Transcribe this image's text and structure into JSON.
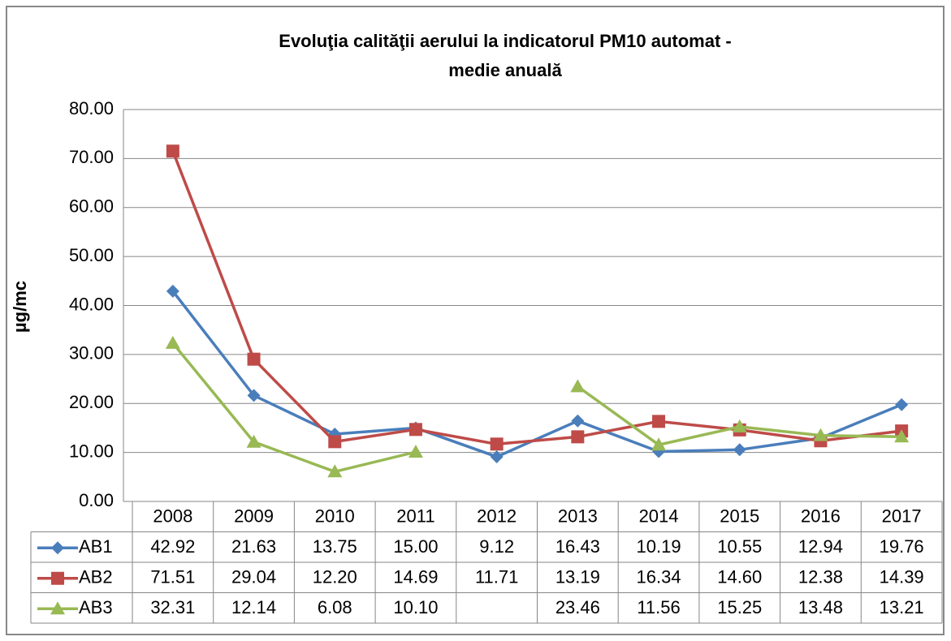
{
  "chart_data": {
    "type": "line",
    "title_lines": [
      "Evoluţia calităţii aerului la indicatorul PM10 automat -",
      "medie anuală"
    ],
    "y_label": "µg/mc",
    "categories": [
      "2008",
      "2009",
      "2010",
      "2011",
      "2012",
      "2013",
      "2014",
      "2015",
      "2016",
      "2017"
    ],
    "series": [
      {
        "name": "AB1",
        "color": "#4a7ebb",
        "marker": "diamond",
        "values": [
          42.92,
          21.63,
          13.75,
          15.0,
          9.12,
          16.43,
          10.19,
          10.55,
          12.94,
          19.76
        ],
        "value_labels": [
          "42.92",
          "21.63",
          "13.75",
          "15.00",
          "9.12",
          "16.43",
          "10.19",
          "10.55",
          "12.94",
          "19.76"
        ]
      },
      {
        "name": "AB2",
        "color": "#be4b48",
        "marker": "square",
        "values": [
          71.51,
          29.04,
          12.2,
          14.69,
          11.71,
          13.19,
          16.34,
          14.6,
          12.38,
          14.39
        ],
        "value_labels": [
          "71.51",
          "29.04",
          "12.20",
          "14.69",
          "11.71",
          "13.19",
          "16.34",
          "14.60",
          "12.38",
          "14.39"
        ]
      },
      {
        "name": "AB3",
        "color": "#98b954",
        "marker": "triangle",
        "values": [
          32.31,
          12.14,
          6.08,
          10.1,
          null,
          23.46,
          11.56,
          15.25,
          13.48,
          13.21
        ],
        "value_labels": [
          "32.31",
          "12.14",
          "6.08",
          "10.10",
          null,
          "23.46",
          "11.56",
          "15.25",
          "13.48",
          "13.21"
        ]
      }
    ],
    "ylim": [
      0,
      80
    ],
    "yticks": [
      {
        "value": 0,
        "label": "0.00"
      },
      {
        "value": 10,
        "label": "10.00"
      },
      {
        "value": 20,
        "label": "20.00"
      },
      {
        "value": 30,
        "label": "30.00"
      },
      {
        "value": 40,
        "label": "40.00"
      },
      {
        "value": 50,
        "label": "50.00"
      },
      {
        "value": 60,
        "label": "60.00"
      },
      {
        "value": 70,
        "label": "70.00"
      },
      {
        "value": 80,
        "label": "80.00"
      }
    ],
    "grid": true
  }
}
